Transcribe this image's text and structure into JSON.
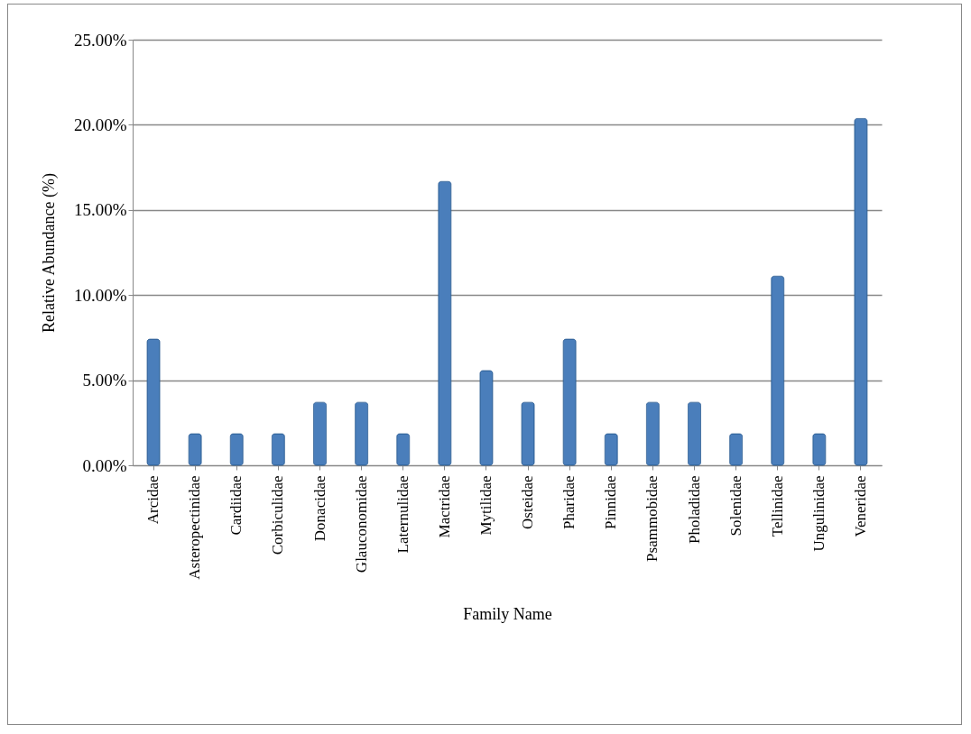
{
  "chart_data": {
    "type": "bar",
    "xlabel": "Family Name",
    "ylabel": "Relative Abundance (%)",
    "categories": [
      "Arcidae",
      "Asteropectinidae",
      "Cardiidae",
      "Corbiculidae",
      "Donacidae",
      "Glauconomidae",
      "Laternulidae",
      "Mactridae",
      "Mytilidae",
      "Osteidae",
      "Pharidae",
      "Pinnidae",
      "Psammobidae",
      "Pholadidae",
      "Solenidae",
      "Tellinidae",
      "Ungulinidae",
      "Veneridae"
    ],
    "values": [
      7.41,
      1.85,
      1.85,
      1.85,
      3.7,
      3.7,
      1.85,
      16.67,
      5.56,
      3.7,
      7.41,
      1.85,
      3.7,
      3.7,
      1.85,
      11.11,
      1.85,
      20.37
    ],
    "color": "#4a7ebb",
    "ylim": [
      0,
      25
    ],
    "yticks": [
      {
        "value": 0,
        "label": "0.00%"
      },
      {
        "value": 5,
        "label": "5.00%"
      },
      {
        "value": 10,
        "label": "10.00%"
      },
      {
        "value": 15,
        "label": "15.00%"
      },
      {
        "value": 20,
        "label": "20.00%"
      },
      {
        "value": 25,
        "label": "25.00%"
      }
    ],
    "grid": "y"
  }
}
